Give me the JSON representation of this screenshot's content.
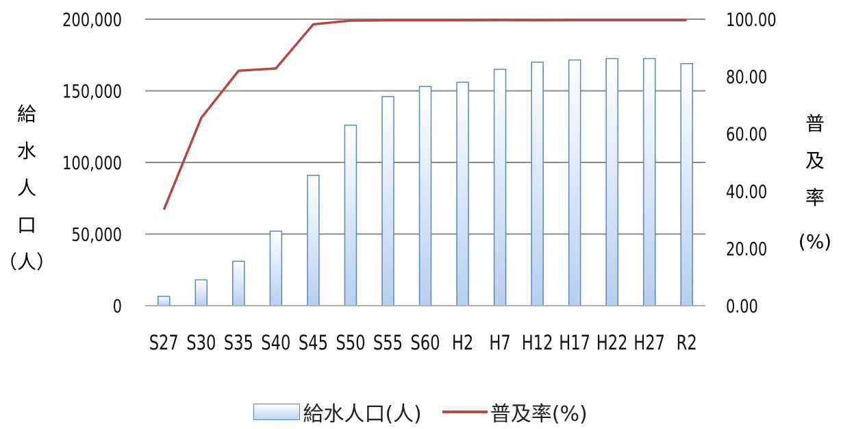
{
  "chart_data": {
    "type": "bar",
    "categories": [
      "S27",
      "S30",
      "S35",
      "S40",
      "S45",
      "S50",
      "S55",
      "S60",
      "H2",
      "H7",
      "H12",
      "H17",
      "H22",
      "H27",
      "R2"
    ],
    "series": [
      {
        "name": "給水人口(人)",
        "type": "bar",
        "axis": "left",
        "values": [
          6500,
          18000,
          31000,
          52000,
          91000,
          126000,
          146000,
          153000,
          156000,
          165000,
          170000,
          171500,
          172500,
          172500,
          169000
        ]
      },
      {
        "name": "普及率(%)",
        "type": "line",
        "axis": "right",
        "values": [
          33.5,
          65.5,
          82.0,
          82.8,
          98.2,
          99.5,
          99.6,
          99.6,
          99.6,
          99.7,
          99.6,
          99.7,
          99.7,
          99.7,
          99.7
        ]
      }
    ],
    "ylim": [
      0,
      200000
    ],
    "y2lim": [
      0,
      100
    ],
    "yticks": [
      "0",
      "50,000",
      "100,000",
      "150,000",
      "200,000"
    ],
    "y2ticks": [
      "0.00",
      "20.00",
      "40.00",
      "60.00",
      "80.00",
      "100.00"
    ],
    "ylabel": [
      "給",
      "水",
      "人",
      "口",
      "（人）"
    ],
    "y2label": [
      "普",
      "及",
      "率",
      "(%)"
    ],
    "grid": true,
    "legend_position": "bottom",
    "colors": {
      "bar_fill_top": "#ffffff",
      "bar_fill_bottom": "#b7cff0",
      "bar_edge": "#5a86c2",
      "line": "#b04a48",
      "grid": "#8c8c8c"
    }
  }
}
